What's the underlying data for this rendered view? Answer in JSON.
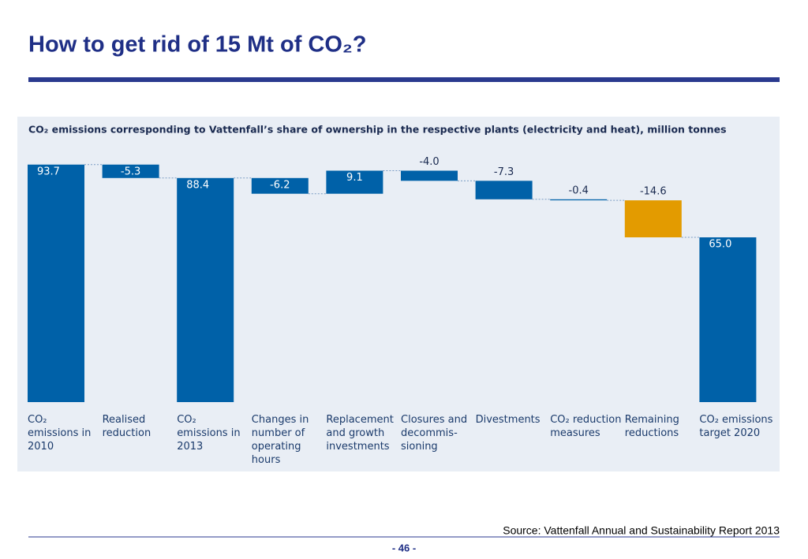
{
  "title": "How to get rid of 15 Mt of CO₂?",
  "chart_data": {
    "type": "waterfall",
    "title": "CO₂ emissions corresponding to Vattenfall’s share of ownership in the respective plants (electricity and heat), million tonnes",
    "categories": [
      "CO₂ emissions in 2010",
      "Realised reduction",
      "CO₂ emissions in 2013",
      "Changes in number of operating hours",
      "Replacement and growth investments",
      "Closures and decommis-sioning",
      "Divestments",
      "CO₂ reduction measures",
      "Remaining reductions",
      "CO₂ emissions target 2020"
    ],
    "values": [
      93.7,
      -5.3,
      88.4,
      -6.2,
      9.1,
      -4.0,
      -7.3,
      -0.4,
      -14.6,
      65.0
    ],
    "value_labels": [
      "93.7",
      "-5.3",
      "88.4",
      "-6.2",
      "9.1",
      "-4.0",
      "-7.3",
      "-0.4",
      "-14.6",
      "65.0"
    ],
    "measure": [
      "absolute",
      "relative",
      "absolute",
      "relative",
      "relative",
      "relative",
      "relative",
      "relative",
      "relative",
      "absolute"
    ],
    "colors": [
      "#0061a8",
      "#0061a8",
      "#0061a8",
      "#0061a8",
      "#0061a8",
      "#0061a8",
      "#0061a8",
      "#0061a8",
      "#e39b00",
      "#0061a8"
    ]
  },
  "source": "Source: Vattenfall Annual and Sustainability Report 2013",
  "page_number": "- 46 -"
}
